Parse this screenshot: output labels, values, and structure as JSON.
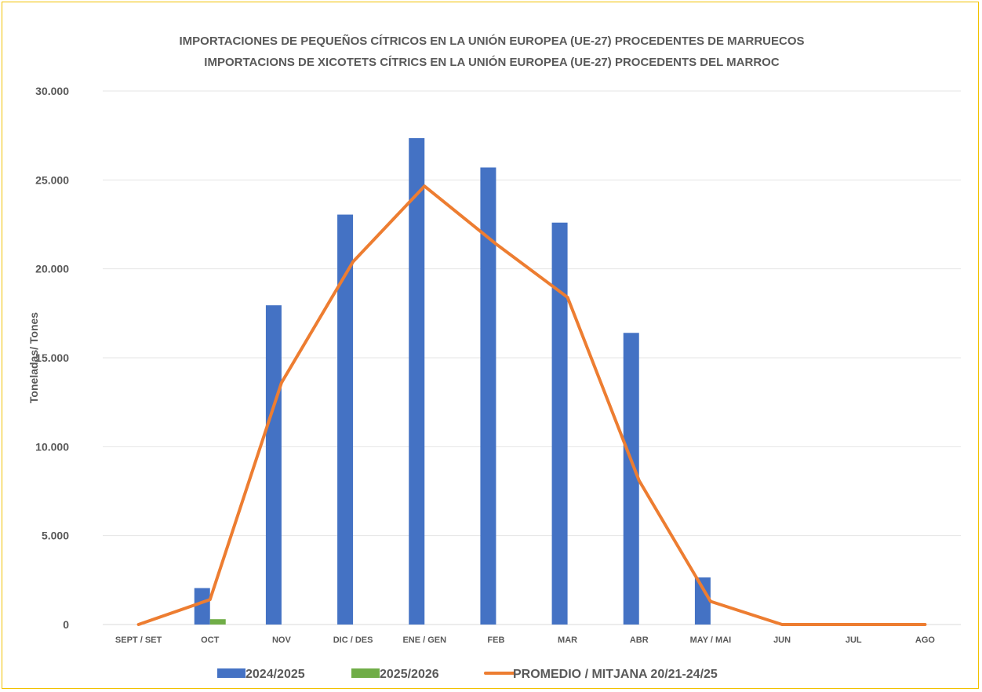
{
  "chart_data": {
    "type": "bar",
    "title_line1": "IMPORTACIONES DE PEQUEÑOS CÍTRICOS EN LA UNIÓN EUROPEA (UE-27) PROCEDENTES DE MARRUECOS",
    "title_line2": "IMPORTACIONS DE XICOTETS CÍTRICS EN LA UNIÓN EUROPEA (UE-27) PROCEDENTS DEL MARROC",
    "ylabel": "Toneladas/ Tones",
    "xlabel": "",
    "ylim": [
      0,
      30000
    ],
    "yticks": [
      0,
      5000,
      10000,
      15000,
      20000,
      25000,
      30000
    ],
    "ytick_labels": [
      "0",
      "5.000",
      "10.000",
      "15.000",
      "20.000",
      "25.000",
      "30.000"
    ],
    "grid": true,
    "legend_position": "bottom",
    "categories": [
      "SEPT / SET",
      "OCT",
      "NOV",
      "DIC / DES",
      "ENE / GEN",
      "FEB",
      "MAR",
      "ABR",
      "MAY / MAI",
      "JUN",
      "JUL",
      "AGO"
    ],
    "series": [
      {
        "name": "2024/2025",
        "type": "bar",
        "color": "#4472c4",
        "values": [
          0,
          2050,
          17950,
          23050,
          27350,
          25700,
          22600,
          16400,
          2650,
          0,
          0,
          0
        ]
      },
      {
        "name": "2025/2026",
        "type": "bar",
        "color": "#70ad47",
        "values": [
          0,
          300,
          null,
          null,
          null,
          null,
          null,
          null,
          null,
          null,
          null,
          null
        ]
      },
      {
        "name": "PROMEDIO / MITJANA 20/21-24/25",
        "type": "line",
        "color": "#ed7d31",
        "values": [
          0,
          1400,
          13600,
          20400,
          24650,
          21400,
          18400,
          8100,
          1300,
          0,
          0,
          0
        ]
      }
    ]
  }
}
